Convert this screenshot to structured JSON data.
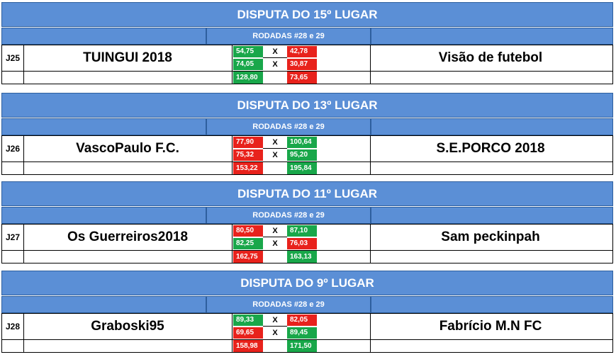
{
  "matches": [
    {
      "title": "DISPUTA DO 15º LUGAR",
      "subtitle": "RODADAS #28 e 29",
      "code": "J25",
      "home": {
        "name": "TUINGUI 2018",
        "r1": "54,75",
        "r2": "74,05",
        "total": "128,80"
      },
      "away": {
        "name": "Visão de futebol",
        "r1": "42,78",
        "r2": "30,87",
        "total": "73,65"
      },
      "vs": "X",
      "colors": {
        "home_r1": "green",
        "home_r2": "green",
        "home_total": "green",
        "away_r1": "red",
        "away_r2": "red",
        "away_total": "red"
      }
    },
    {
      "title": "DISPUTA DO 13º LUGAR",
      "subtitle": "RODADAS #28 e 29",
      "code": "J26",
      "home": {
        "name": "VascoPaulo F.C.",
        "r1": "77,90",
        "r2": "75,32",
        "total": "153,22"
      },
      "away": {
        "name": "S.E.PORCO 2018",
        "r1": "100,64",
        "r2": "95,20",
        "total": "195,84"
      },
      "vs": "X",
      "colors": {
        "home_r1": "red",
        "home_r2": "red",
        "home_total": "red",
        "away_r1": "green",
        "away_r2": "green",
        "away_total": "green"
      }
    },
    {
      "title": "DISPUTA DO 11º LUGAR",
      "subtitle": "RODADAS #28 e 29",
      "code": "J27",
      "home": {
        "name": "Os Guerreiros2018",
        "r1": "80,50",
        "r2": "82,25",
        "total": "162,75"
      },
      "away": {
        "name": "Sam peckinpah",
        "r1": "87,10",
        "r2": "76,03",
        "total": "163,13"
      },
      "vs": "X",
      "colors": {
        "home_r1": "red",
        "home_r2": "green",
        "home_total": "red",
        "away_r1": "green",
        "away_r2": "red",
        "away_total": "green"
      }
    },
    {
      "title": "DISPUTA DO 9º LUGAR",
      "subtitle": "RODADAS #28 e 29",
      "code": "J28",
      "home": {
        "name": "Graboski95",
        "r1": "89,33",
        "r2": "69,65",
        "total": "158,98"
      },
      "away": {
        "name": "Fabrício M.N FC",
        "r1": "82,05",
        "r2": "89,45",
        "total": "171,50"
      },
      "vs": "X",
      "colors": {
        "home_r1": "green",
        "home_r2": "red",
        "home_total": "red",
        "away_r1": "red",
        "away_r2": "green",
        "away_total": "green"
      }
    }
  ]
}
